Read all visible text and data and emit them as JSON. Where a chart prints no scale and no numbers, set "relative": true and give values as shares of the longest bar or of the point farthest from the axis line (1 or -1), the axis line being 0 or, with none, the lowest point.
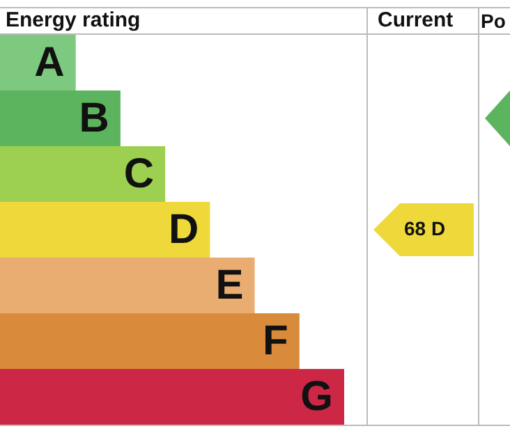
{
  "chart_data": {
    "type": "bar",
    "orientation": "horizontal",
    "relative": true,
    "title": "Energy rating",
    "tick_labels": false,
    "categories": [
      "A",
      "B",
      "C",
      "D",
      "E",
      "F",
      "G"
    ],
    "values": [
      0.22,
      0.35,
      0.48,
      0.61,
      0.74,
      0.87,
      1
    ],
    "colors": [
      "#7cc97f",
      "#5db45e",
      "#9dd050",
      "#efd93a",
      "#e9ad72",
      "#d98a3a",
      "#cc2846"
    ],
    "annotations": [
      "Current",
      "Po",
      "68 D"
    ]
  }
}
